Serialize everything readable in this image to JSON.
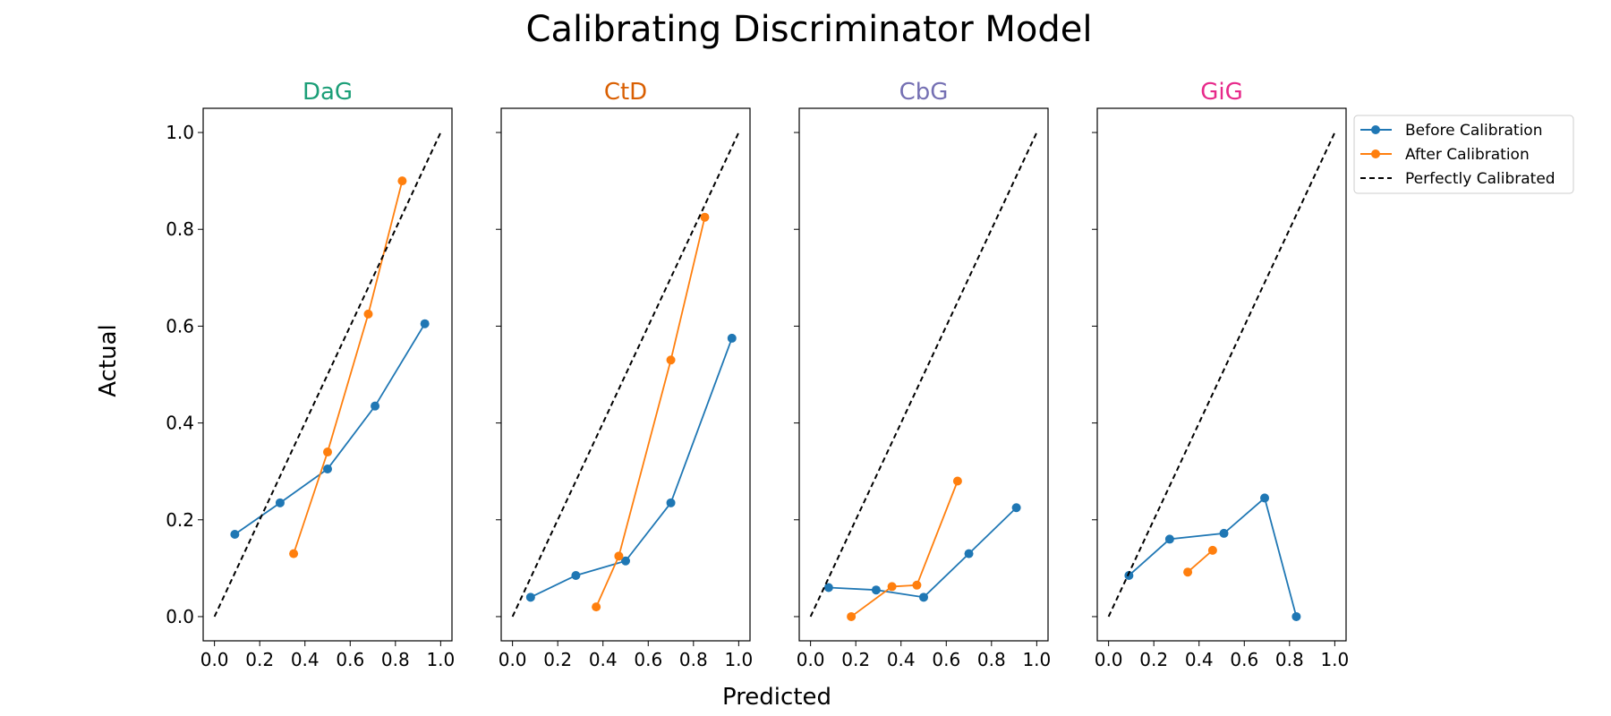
{
  "figure": {
    "title": "Calibrating Discriminator Model",
    "xlabel": "Predicted",
    "ylabel": "Actual"
  },
  "legend": {
    "placement": "outside-right-top",
    "entries": [
      {
        "label": "Before Calibration",
        "color": "#1f77b4",
        "style": "line-marker"
      },
      {
        "label": "After Calibration",
        "color": "#ff7f0e",
        "style": "line-marker"
      },
      {
        "label": "Perfectly Calibrated",
        "color": "#000000",
        "style": "dashed"
      }
    ]
  },
  "chart_data": [
    {
      "type": "line",
      "title": "DaG",
      "title_color": "#1b9e77",
      "xlim": [
        -0.05,
        1.05
      ],
      "ylim": [
        -0.05,
        1.05
      ],
      "xticks": [
        "0.0",
        "0.2",
        "0.4",
        "0.6",
        "0.8",
        "1.0"
      ],
      "yticks": [
        "0.0",
        "0.2",
        "0.4",
        "0.6",
        "0.8",
        "1.0"
      ],
      "series": [
        {
          "name": "Before Calibration",
          "color": "#1f77b4",
          "x": [
            0.09,
            0.29,
            0.5,
            0.71,
            0.93
          ],
          "y": [
            0.17,
            0.235,
            0.305,
            0.435,
            0.605
          ]
        },
        {
          "name": "After Calibration",
          "color": "#ff7f0e",
          "x": [
            0.35,
            0.5,
            0.68,
            0.83
          ],
          "y": [
            0.13,
            0.34,
            0.625,
            0.9
          ]
        },
        {
          "name": "Perfectly Calibrated",
          "color": "#000000",
          "dashed": true,
          "x": [
            0.0,
            1.0
          ],
          "y": [
            0.0,
            1.0
          ]
        }
      ]
    },
    {
      "type": "line",
      "title": "CtD",
      "title_color": "#d95f02",
      "xlim": [
        -0.05,
        1.05
      ],
      "ylim": [
        -0.05,
        1.05
      ],
      "xticks": [
        "0.0",
        "0.2",
        "0.4",
        "0.6",
        "0.8",
        "1.0"
      ],
      "yticks": [],
      "series": [
        {
          "name": "Before Calibration",
          "color": "#1f77b4",
          "x": [
            0.08,
            0.28,
            0.5,
            0.7,
            0.97
          ],
          "y": [
            0.04,
            0.085,
            0.115,
            0.235,
            0.575
          ]
        },
        {
          "name": "After Calibration",
          "color": "#ff7f0e",
          "x": [
            0.37,
            0.47,
            0.7,
            0.85
          ],
          "y": [
            0.02,
            0.125,
            0.53,
            0.825
          ]
        },
        {
          "name": "Perfectly Calibrated",
          "color": "#000000",
          "dashed": true,
          "x": [
            0.0,
            1.0
          ],
          "y": [
            0.0,
            1.0
          ]
        }
      ]
    },
    {
      "type": "line",
      "title": "CbG",
      "title_color": "#7570b3",
      "xlim": [
        -0.05,
        1.05
      ],
      "ylim": [
        -0.05,
        1.05
      ],
      "xticks": [
        "0.0",
        "0.2",
        "0.4",
        "0.6",
        "0.8",
        "1.0"
      ],
      "yticks": [],
      "series": [
        {
          "name": "Before Calibration",
          "color": "#1f77b4",
          "x": [
            0.08,
            0.29,
            0.5,
            0.7,
            0.91
          ],
          "y": [
            0.06,
            0.055,
            0.04,
            0.13,
            0.225
          ]
        },
        {
          "name": "After Calibration",
          "color": "#ff7f0e",
          "x": [
            0.18,
            0.36,
            0.47,
            0.65
          ],
          "y": [
            0.0,
            0.062,
            0.065,
            0.28
          ]
        },
        {
          "name": "Perfectly Calibrated",
          "color": "#000000",
          "dashed": true,
          "x": [
            0.0,
            1.0
          ],
          "y": [
            0.0,
            1.0
          ]
        }
      ]
    },
    {
      "type": "line",
      "title": "GiG",
      "title_color": "#e7298a",
      "xlim": [
        -0.05,
        1.05
      ],
      "ylim": [
        -0.05,
        1.05
      ],
      "xticks": [
        "0.0",
        "0.2",
        "0.4",
        "0.6",
        "0.8",
        "1.0"
      ],
      "yticks": [],
      "series": [
        {
          "name": "Before Calibration",
          "color": "#1f77b4",
          "x": [
            0.09,
            0.27,
            0.51,
            0.69,
            0.83
          ],
          "y": [
            0.085,
            0.16,
            0.172,
            0.245,
            0.0
          ]
        },
        {
          "name": "After Calibration",
          "color": "#ff7f0e",
          "x": [
            0.35,
            0.46
          ],
          "y": [
            0.092,
            0.137
          ]
        },
        {
          "name": "Perfectly Calibrated",
          "color": "#000000",
          "dashed": true,
          "x": [
            0.0,
            1.0
          ],
          "y": [
            0.0,
            1.0
          ]
        }
      ]
    }
  ]
}
